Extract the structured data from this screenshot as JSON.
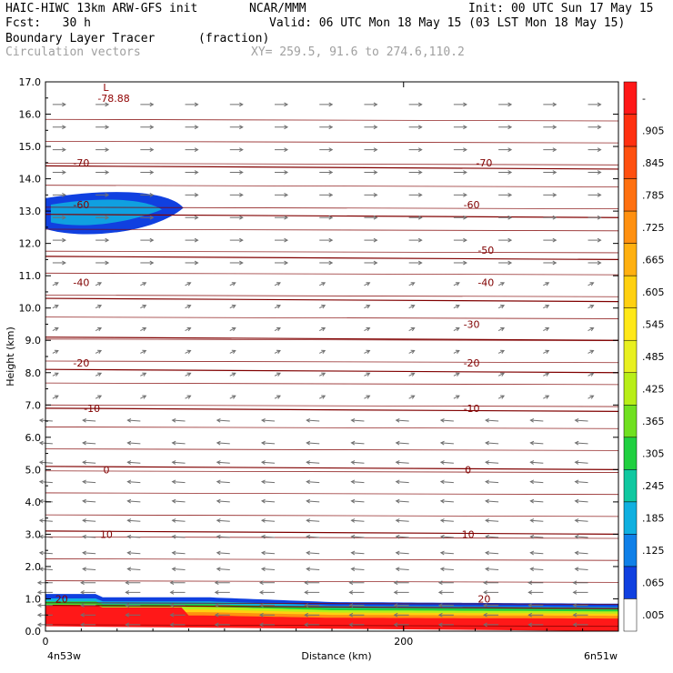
{
  "header": {
    "title_left": "HAIC-HIWC 13km ARW-GFS init",
    "title_center": "NCAR/MMM",
    "init": "Init: 00 UTC Sun 17 May 15",
    "fcst": "Fcst:   30 h",
    "valid": "Valid: 06 UTC Mon 18 May 15 (03 LST Mon 18 May 15)",
    "field_name": "Boundary Layer Tracer",
    "field_units": "(fraction)",
    "vector_name": "Circulation vectors",
    "xy": "XY= 259.5, 91.6 to 274.6,110.2"
  },
  "chart_data": {
    "type": "contour-cross-section",
    "ylabel": "Height (km)",
    "xlabel": "Distance (km)",
    "ylim": [
      0,
      17
    ],
    "xlim": [
      0,
      320
    ],
    "y_ticks": [
      "0.0",
      "1.0",
      "2.0",
      "3.0",
      "4.0",
      "5.0",
      "6.0",
      "7.0",
      "8.0",
      "9.0",
      "10.0",
      "11.0",
      "12.0",
      "13.0",
      "14.0",
      "15.0",
      "16.0",
      "17.0"
    ],
    "x_ticks": [
      {
        "value": 0,
        "label": "0"
      },
      {
        "value": 200,
        "label": "200"
      }
    ],
    "x_end_labels": {
      "left": "4n53w",
      "right": "6n51w"
    },
    "min_label": {
      "text": "L",
      "value": "-78.88",
      "x": 22,
      "y": 16.6
    },
    "temperature_contours": [
      {
        "value": -70,
        "y": 14.4
      },
      {
        "value": -60,
        "y": 12.9
      },
      {
        "value": -50,
        "y": 11.6
      },
      {
        "value": -40,
        "y": 10.3
      },
      {
        "value": -30,
        "y": 9.1
      },
      {
        "value": -20,
        "y": 8.1
      },
      {
        "value": -10,
        "y": 6.9
      },
      {
        "value": 0,
        "y": 5.1
      },
      {
        "value": 10,
        "y": 3.1
      },
      {
        "value": 20,
        "y": 0.8
      }
    ],
    "contour_label_positions": [
      {
        "value": -70,
        "x": 20,
        "y": 14.5
      },
      {
        "value": -70,
        "x": 245,
        "y": 14.5
      },
      {
        "value": -60,
        "x": 20,
        "y": 13.2
      },
      {
        "value": -60,
        "x": 238,
        "y": 13.2
      },
      {
        "value": -50,
        "x": 246,
        "y": 11.8
      },
      {
        "value": -40,
        "x": 20,
        "y": 10.8
      },
      {
        "value": -40,
        "x": 246,
        "y": 10.8
      },
      {
        "value": -30,
        "x": 238,
        "y": 9.5
      },
      {
        "value": -20,
        "x": 20,
        "y": 8.3
      },
      {
        "value": -20,
        "x": 238,
        "y": 8.3
      },
      {
        "value": -10,
        "x": 26,
        "y": 6.9
      },
      {
        "value": -10,
        "x": 238,
        "y": 6.9
      },
      {
        "value": 0,
        "x": 34,
        "y": 5.0
      },
      {
        "value": 0,
        "x": 236,
        "y": 5.0
      },
      {
        "value": 10,
        "x": 34,
        "y": 3.0
      },
      {
        "value": 10,
        "x": 236,
        "y": 3.0
      },
      {
        "value": 20,
        "x": 9,
        "y": 1.0
      },
      {
        "value": 20,
        "x": 245,
        "y": 1.0
      }
    ],
    "colorbar": {
      "labels": [
        "-",
        ".905",
        ".845",
        ".785",
        ".725",
        ".665",
        ".605",
        ".545",
        ".485",
        ".425",
        ".365",
        ".305",
        ".245",
        ".185",
        ".125",
        ".065",
        ".005"
      ],
      "colors": [
        "#ff1818",
        "#ff3010",
        "#ff5010",
        "#ff7010",
        "#ff9010",
        "#ffb010",
        "#ffd010",
        "#ffe818",
        "#e8f020",
        "#b8ee18",
        "#70e020",
        "#20d040",
        "#10c8a0",
        "#10b0e0",
        "#1080e8",
        "#1040e0",
        "#ffffff"
      ]
    },
    "vectors": {
      "columns": [
        4,
        28,
        53,
        78,
        103,
        128,
        153,
        178,
        203,
        228,
        253,
        278,
        303
      ],
      "rows": [
        0.2,
        0.5,
        0.8,
        1.2,
        1.5,
        1.9,
        2.4,
        2.9,
        3.4,
        4.0,
        4.6,
        5.2,
        5.8,
        6.5,
        7.2,
        7.9,
        8.6,
        9.3,
        10.0,
        10.7,
        11.4,
        12.1,
        12.8,
        13.5,
        14.2,
        14.9,
        15.6,
        16.3
      ]
    }
  }
}
